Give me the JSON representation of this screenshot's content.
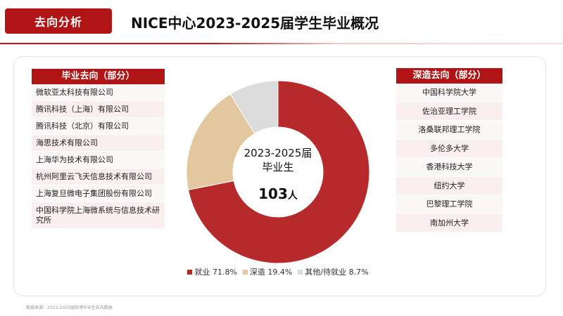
{
  "header": {
    "tag": "去向分析",
    "title": "NICE中心2023-2025届学生毕业概况"
  },
  "left_list": {
    "title": "毕业去向（部分）",
    "items": [
      "微软亚太科技有限公司",
      "腾讯科技（上海）有限公司",
      "腾讯科技（北京）有限公司",
      "海思技术有限公司",
      "上海华为技术有限公司",
      "杭州阿里云飞天信息技术有限公司",
      "上海复旦微电子集团股份有限公司",
      "中国科学院上海微系统与信息技术研究所"
    ]
  },
  "right_list": {
    "title": "深造去向（部分）",
    "items": [
      "中国科学院大学",
      "佐治亚理工学院",
      "洛桑联邦理工学院",
      "多伦多大学",
      "香港科技大学",
      "纽约大学",
      "巴黎理工学院",
      "南加州大学"
    ]
  },
  "chart_data": {
    "type": "pie",
    "style": "donut",
    "center_label": "2023-2025届\n毕业生",
    "center_value": "103",
    "center_unit": "人",
    "slices": [
      {
        "label": "就业 71.8%",
        "value": 71.8,
        "color": "#b72a2c"
      },
      {
        "label": "深造 19.4%",
        "value": 19.4,
        "color": "#e2c79f"
      },
      {
        "label": "其他/待就业 8.7%",
        "value": 8.7,
        "color": "#dcdcdc"
      }
    ],
    "legend_position": "bottom"
  },
  "footer": {
    "source": "数据来源：2023-2025届硕博毕业生去向数据"
  }
}
